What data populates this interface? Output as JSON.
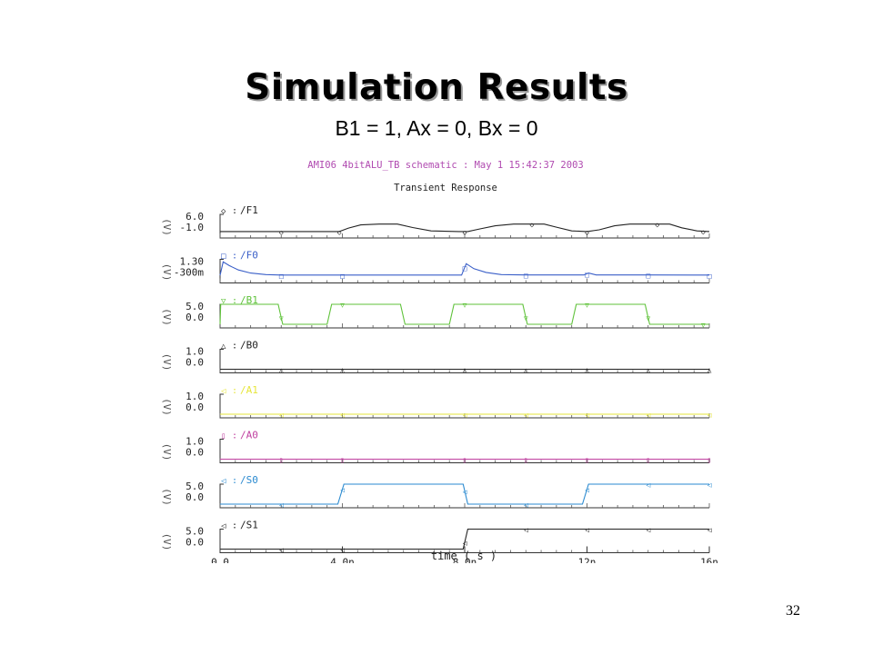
{
  "slide": {
    "title": "Simulation Results",
    "subtitle": "B1 = 1, Ax = 0, Bx = 0",
    "page_number": "32"
  },
  "chart_data": {
    "type": "line",
    "header": "AMI06 4bitALU_TB schematic : May  1 15:42:37 2003",
    "title": "Transient Response",
    "corner_mark": "Ľ",
    "xlabel": "time ( s )",
    "xlim": [
      0,
      16
    ],
    "x_ticks": [
      {
        "value": 0,
        "label": "0.0"
      },
      {
        "value": 4,
        "label": "4.0n"
      },
      {
        "value": 8,
        "label": "8.0n"
      },
      {
        "value": 12,
        "label": "12n"
      },
      {
        "value": 16,
        "label": "16n"
      }
    ],
    "unit_label": "(V)",
    "colors": {
      "header": "#b04ab0",
      "F1": "#222222",
      "F0": "#3a5fc8",
      "B1": "#5fc23a",
      "B0": "#222222",
      "A1": "#e6e63a",
      "A0": "#c040a0",
      "S0": "#2a8ad0",
      "S1": "#222222"
    },
    "series": [
      {
        "key": "F1",
        "name": "/F1",
        "symbol": "◇",
        "ymax_label": "6.0",
        "ymin_label": "-1.0",
        "ylim": [
          -1,
          6
        ],
        "points": [
          [
            0,
            0
          ],
          [
            3.9,
            0
          ],
          [
            4.2,
            1.2
          ],
          [
            4.6,
            2.3
          ],
          [
            5.2,
            2.6
          ],
          [
            5.8,
            2.6
          ],
          [
            6.3,
            1.4
          ],
          [
            6.9,
            0.2
          ],
          [
            7.8,
            0
          ],
          [
            8.1,
            0
          ],
          [
            8.5,
            0.9
          ],
          [
            9,
            2
          ],
          [
            9.6,
            2.6
          ],
          [
            10.6,
            2.6
          ],
          [
            11,
            1.5
          ],
          [
            11.5,
            0.2
          ],
          [
            12,
            0
          ],
          [
            12.4,
            0.6
          ],
          [
            12.9,
            2
          ],
          [
            13.4,
            2.6
          ],
          [
            14.7,
            2.6
          ],
          [
            15.1,
            1.3
          ],
          [
            15.6,
            0.2
          ],
          [
            16,
            0
          ]
        ],
        "markers": [
          2.0,
          3.9,
          8.0,
          10.2,
          12.0,
          14.3,
          15.8
        ]
      },
      {
        "key": "F0",
        "name": "/F0",
        "symbol": "□",
        "ymax_label": "1.30",
        "ymin_label": "-300m",
        "ylim": [
          -0.3,
          1.3
        ],
        "points": [
          [
            0,
            0.02
          ],
          [
            0.1,
            1.1
          ],
          [
            0.3,
            0.8
          ],
          [
            0.6,
            0.45
          ],
          [
            1,
            0.2
          ],
          [
            1.5,
            0.08
          ],
          [
            2,
            0.04
          ],
          [
            4,
            0.04
          ],
          [
            7.9,
            0.04
          ],
          [
            8.05,
            0.95
          ],
          [
            8.3,
            0.55
          ],
          [
            8.7,
            0.25
          ],
          [
            9.2,
            0.08
          ],
          [
            10,
            0.05
          ],
          [
            11.9,
            0.05
          ],
          [
            12.05,
            0.2
          ],
          [
            12.3,
            0.05
          ],
          [
            14,
            0.05
          ],
          [
            16,
            0.04
          ]
        ],
        "markers": [
          2.0,
          4.0,
          8.0,
          10.0,
          12.0,
          14.0,
          16.0
        ]
      },
      {
        "key": "B1",
        "name": "/B1",
        "symbol": "▽",
        "ymax_label": "5.0",
        "ymin_label": "0.0",
        "ylim": [
          0,
          5
        ],
        "points": [
          [
            0,
            0
          ],
          [
            0.02,
            5
          ],
          [
            1.9,
            5
          ],
          [
            2.05,
            0
          ],
          [
            3.5,
            0
          ],
          [
            3.65,
            5
          ],
          [
            5.9,
            5
          ],
          [
            6.05,
            0
          ],
          [
            7.5,
            0
          ],
          [
            7.65,
            5
          ],
          [
            9.9,
            5
          ],
          [
            10.05,
            0
          ],
          [
            11.5,
            0
          ],
          [
            11.65,
            5
          ],
          [
            13.9,
            5
          ],
          [
            14.05,
            0
          ],
          [
            16,
            0
          ]
        ],
        "markers": [
          2.0,
          4.0,
          8.0,
          10.0,
          12.0,
          14.0,
          15.8
        ]
      },
      {
        "key": "B0",
        "name": "/B0",
        "symbol": "△",
        "ymax_label": "1.0",
        "ymin_label": "0.0",
        "ylim": [
          0,
          1
        ],
        "points": [
          [
            0,
            0
          ],
          [
            16,
            0
          ]
        ],
        "markers": [
          2.0,
          4.0,
          8.0,
          10.0,
          12.0,
          14.0,
          16.0
        ]
      },
      {
        "key": "A1",
        "name": "/A1",
        "symbol": "◁",
        "ymax_label": "1.0",
        "ymin_label": "0.0",
        "ylim": [
          0,
          1
        ],
        "points": [
          [
            0,
            0
          ],
          [
            16,
            0
          ]
        ],
        "markers": [
          2.0,
          4.0,
          8.0,
          10.0,
          12.0,
          14.0,
          16.0
        ]
      },
      {
        "key": "A0",
        "name": "/A0",
        "symbol": "▯",
        "ymax_label": "1.0",
        "ymin_label": "0.0",
        "ylim": [
          0,
          1
        ],
        "points": [
          [
            0,
            0
          ],
          [
            16,
            0
          ]
        ],
        "markers": [
          2.0,
          4.0,
          8.0,
          10.0,
          12.0,
          14.0,
          16.0
        ]
      },
      {
        "key": "S0",
        "name": "/S0",
        "symbol": "◁",
        "ymax_label": "5.0",
        "ymin_label": "0.0",
        "ylim": [
          0,
          5
        ],
        "points": [
          [
            0,
            0
          ],
          [
            3.85,
            0
          ],
          [
            4.05,
            5
          ],
          [
            7.95,
            5
          ],
          [
            8.1,
            0
          ],
          [
            11.85,
            0
          ],
          [
            12.05,
            5
          ],
          [
            16,
            5
          ]
        ],
        "markers": [
          2.0,
          4.0,
          8.0,
          10.0,
          12.0,
          14.0,
          16.0
        ]
      },
      {
        "key": "S1",
        "name": "/S1",
        "symbol": "◁",
        "ymax_label": "5.0",
        "ymin_label": "0.0",
        "ylim": [
          0,
          5
        ],
        "points": [
          [
            0,
            0
          ],
          [
            7.95,
            0
          ],
          [
            8.1,
            5
          ],
          [
            16,
            5
          ]
        ],
        "markers": [
          2.0,
          4.0,
          8.0,
          10.0,
          12.0,
          14.0,
          16.0
        ]
      }
    ]
  }
}
